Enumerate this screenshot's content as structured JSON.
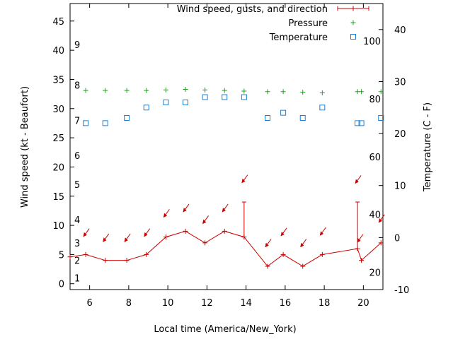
{
  "chart_data": {
    "type": "line",
    "xlabel": "Local time (America/New_York)",
    "ylabel_left": "Wind speed (kt - Beaufort)",
    "ylabel_right": "Temperature (C - F)",
    "xlim": [
      5,
      21
    ],
    "ylim_left": [
      -1,
      48
    ],
    "ylim_right": [
      -10,
      45
    ],
    "x_ticks": [
      6,
      8,
      10,
      12,
      14,
      16,
      18,
      20
    ],
    "y_left_ticks": [
      0,
      5,
      10,
      15,
      20,
      25,
      30,
      35,
      40,
      45
    ],
    "y_right_ticks": [
      -10,
      0,
      10,
      20,
      30,
      40
    ],
    "fahrenheit_labels": [
      {
        "label": "20",
        "value": 20
      },
      {
        "label": "40",
        "value": 40
      },
      {
        "label": "60",
        "value": 60
      },
      {
        "label": "80",
        "value": 80
      },
      {
        "label": "100",
        "value": 100
      }
    ],
    "beaufort_labels": [
      {
        "label": "1",
        "value": 1
      },
      {
        "label": "2",
        "value": 4
      },
      {
        "label": "3",
        "value": 7
      },
      {
        "label": "4",
        "value": 11
      },
      {
        "label": "5",
        "value": 17
      },
      {
        "label": "6",
        "value": 22
      },
      {
        "label": "7",
        "value": 28
      },
      {
        "label": "8",
        "value": 34
      },
      {
        "label": "9",
        "value": 41
      }
    ],
    "legend": [
      {
        "name": "Wind speed, gusts, and direction",
        "color": "#cc0000",
        "marker": "plus-line"
      },
      {
        "name": "Pressure",
        "color": "#22a022",
        "marker": "plus"
      },
      {
        "name": "Temperature",
        "color": "#1e7fd0",
        "marker": "square"
      }
    ],
    "legend_position": "top-right",
    "wind": {
      "x": [
        5.0,
        5.8,
        6.8,
        7.9,
        8.9,
        9.9,
        10.9,
        11.9,
        12.9,
        13.9,
        15.1,
        15.9,
        16.9,
        17.9,
        19.7,
        19.9,
        20.9
      ],
      "speed": [
        4.6,
        5,
        4,
        4,
        5,
        8,
        9,
        7,
        9,
        8,
        3,
        5,
        3,
        5,
        6,
        4,
        7
      ],
      "gusts": [
        {
          "x": 13.9,
          "gust": 14
        },
        {
          "x": 19.7,
          "gust": 14
        }
      ],
      "direction_arrows": [
        {
          "x": 5.8,
          "value": 8.6
        },
        {
          "x": 6.8,
          "value": 7.7
        },
        {
          "x": 7.9,
          "value": 7.7
        },
        {
          "x": 8.9,
          "value": 8.6
        },
        {
          "x": 9.9,
          "value": 11.9
        },
        {
          "x": 10.9,
          "value": 12.8
        },
        {
          "x": 11.9,
          "value": 10.8
        },
        {
          "x": 12.9,
          "value": 12.8
        },
        {
          "x": 13.9,
          "value": 17.8
        },
        {
          "x": 15.1,
          "value": 6.8
        },
        {
          "x": 15.9,
          "value": 8.7
        },
        {
          "x": 16.9,
          "value": 6.8
        },
        {
          "x": 17.9,
          "value": 8.8
        },
        {
          "x": 19.7,
          "value": 17.7
        },
        {
          "x": 19.8,
          "value": 7.6
        },
        {
          "x": 20.9,
          "value": 11.0
        }
      ]
    },
    "pressure": {
      "x": [
        5.8,
        6.8,
        7.9,
        8.9,
        9.9,
        10.9,
        11.9,
        12.9,
        13.9,
        15.1,
        15.9,
        16.9,
        17.9,
        19.7,
        19.9,
        20.9
      ],
      "values": [
        33.1,
        33.1,
        33.1,
        33.1,
        33.2,
        33.3,
        33.2,
        33.1,
        33.0,
        32.9,
        32.9,
        32.8,
        32.7,
        32.9,
        32.9,
        32.9
      ]
    },
    "temperature": {
      "x": [
        5.8,
        6.8,
        7.9,
        8.9,
        9.9,
        10.9,
        11.9,
        12.9,
        13.9,
        15.1,
        15.9,
        16.9,
        17.9,
        19.7,
        19.9,
        20.9
      ],
      "values": [
        22,
        22,
        23,
        25,
        26,
        26,
        27,
        27,
        27,
        23,
        24,
        23,
        25,
        22,
        22,
        23
      ]
    }
  }
}
